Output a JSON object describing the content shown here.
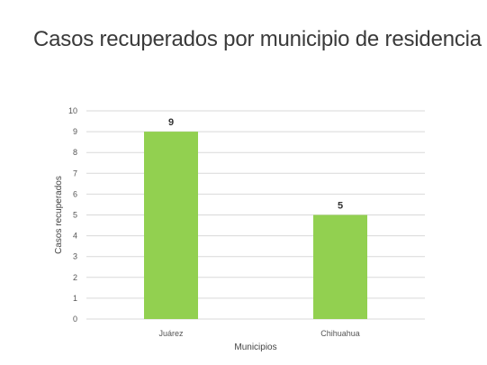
{
  "slide": {
    "title": "Casos recuperados por municipio de residencia"
  },
  "chart_data": {
    "type": "bar",
    "categories": [
      "Juárez",
      "Chihuahua"
    ],
    "values": [
      9,
      5
    ],
    "data_labels": [
      "9",
      "5"
    ],
    "xlabel": "Municipios",
    "ylabel": "Casos recuperados",
    "ylim": [
      0,
      10
    ],
    "yticks": [
      "0",
      "1",
      "2",
      "3",
      "4",
      "5",
      "6",
      "7",
      "8",
      "9",
      "10"
    ],
    "grid": true,
    "legend": "none",
    "bar_color": "#92d050",
    "grid_color": "#d9d9d9"
  }
}
